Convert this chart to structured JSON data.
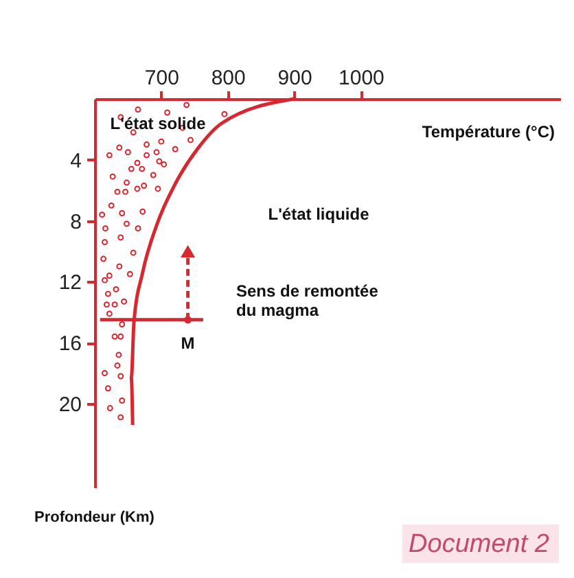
{
  "chart_data": {
    "type": "line",
    "xlabel": "Température (°C)",
    "ylabel": "Profondeur (Km)",
    "xlim": [
      600,
      1300
    ],
    "xticks": [
      700,
      800,
      900,
      {
        "value": 1000,
        "label": "1000"
      }
    ],
    "ylim": [
      25.5,
      0
    ],
    "yticks": [
      4,
      8,
      12,
      16,
      20
    ],
    "grid": false,
    "annotations": [
      "L'état solide",
      "L'état liquide",
      "Sens de remontée\ndu magma",
      {
        "text": "M",
        "x": 740,
        "y": 14.5
      },
      "Document 2"
    ],
    "series": [
      {
        "color": "#d7282f",
        "line_style": "solid",
        "marker": "none",
        "x": [
          900,
          791,
          756,
          722,
          693,
          672,
          659,
          655,
          657
        ],
        "values": [
          0,
          1.6,
          3.2,
          5.5,
          8.3,
          11.4,
          14.6,
          18.3,
          21.4
        ]
      },
      {
        "color": "#d7282f",
        "line_style": "solid",
        "marker": "none",
        "x": [
          608,
          763
        ],
        "values": [
          14.5,
          14.5
        ]
      },
      {
        "color": "#d7282f",
        "line_style": "dashed",
        "marker": "triangle",
        "x": [
          740,
          740
        ],
        "values": [
          14.5,
          10
        ]
      },
      {
        "type": "scatter",
        "color": "#d7282f",
        "marker": "circle",
        "x": [
          740
        ],
        "values": [
          14.5
        ]
      },
      {
        "type": "scatter",
        "color": "#d7282f",
        "marker": "circle",
        "x": [
          665,
          738,
          709,
          795,
          639,
          732,
          658,
          700,
          721,
          744,
          678,
          637,
          650,
          678,
          693,
          704,
          622,
          664,
          655,
          671,
          697,
          627,
          688,
          648,
          634,
          646,
          664,
          674,
          695,
          625,
          641,
          672,
          611,
          648,
          616,
          665,
          615,
          639,
          658,
          613,
          637,
          653,
          622,
          615,
          632,
          620,
          644,
          618,
          630,
          622,
          641,
          630,
          639,
          636,
          634,
          615,
          639,
          620,
          641,
          623,
          639
        ],
        "values": [
          0.7,
          0.4,
          0.9,
          1.0,
          1.2,
          1.9,
          2.2,
          2.8,
          3.3,
          2.7,
          3.0,
          3.2,
          3.5,
          3.7,
          3.5,
          4.3,
          3.7,
          4.2,
          4.6,
          4.6,
          4.1,
          5.1,
          5.0,
          5.5,
          6.1,
          6.1,
          5.9,
          5.7,
          5.9,
          7.0,
          7.5,
          7.4,
          7.6,
          8.2,
          8.5,
          8.5,
          9.4,
          9.1,
          10.1,
          10.5,
          11.0,
          11.5,
          11.6,
          11.9,
          12.5,
          12.8,
          13.3,
          13.5,
          13.5,
          14.1,
          14.8,
          15.6,
          15.6,
          16.8,
          17.5,
          18.0,
          18.2,
          19.0,
          19.8,
          20.3,
          20.9
        ]
      }
    ]
  }
}
